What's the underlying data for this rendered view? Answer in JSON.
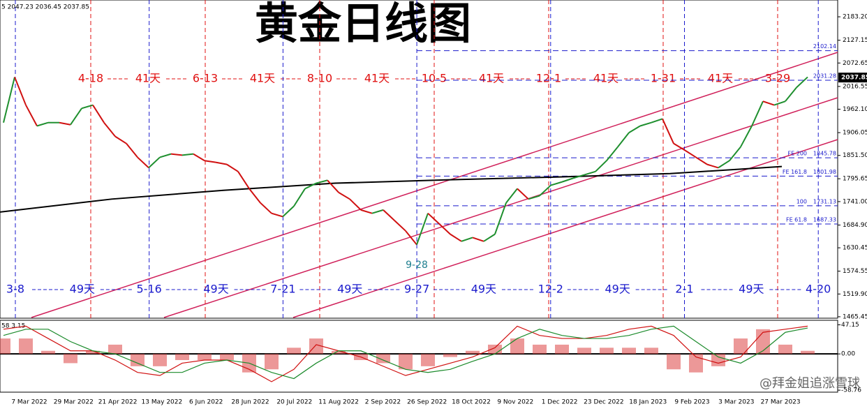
{
  "header": "5 2047.23 2036.45 2037.85",
  "watermark": "@拜金姐追涨雪球",
  "chart_data": {
    "type": "line",
    "title": "黄金日线图",
    "ylim": [
      1462,
      2223.4
    ],
    "yticks": [
      {
        "value": 2183.2,
        "label": "2183.20"
      },
      {
        "value": 2127.15,
        "label": "2127.15"
      },
      {
        "value": 2072.65,
        "label": "2072.65"
      },
      {
        "value": 2016.55,
        "label": "2016.55"
      },
      {
        "value": 1962.1,
        "label": "1962.10"
      },
      {
        "value": 1906.05,
        "label": "1906.05"
      },
      {
        "value": 1851.5,
        "label": "1851.50"
      },
      {
        "value": 1795.65,
        "label": "1795.65"
      },
      {
        "value": 1741,
        "label": "1741.00"
      },
      {
        "value": 1684.9,
        "label": "1684.90"
      },
      {
        "value": 1630.45,
        "label": "1630.45"
      },
      {
        "value": 1574.55,
        "label": "1574.55"
      },
      {
        "value": 1519.9,
        "label": "1519.90"
      },
      {
        "value": 1465.45,
        "label": "1465.45"
      }
    ],
    "values": [
      1930,
      2039,
      1972,
      1922,
      1930,
      1930,
      1925,
      1964,
      1972,
      1930,
      1897,
      1880,
      1847,
      1822,
      1847,
      1855,
      1852,
      1855,
      1839,
      1835,
      1830,
      1813,
      1772,
      1738,
      1713,
      1705,
      1730,
      1772,
      1785,
      1792,
      1763,
      1747,
      1721,
      1713,
      1721,
      1696,
      1671,
      1638,
      1713,
      1688,
      1663,
      1646,
      1655,
      1646,
      1663,
      1738,
      1772,
      1747,
      1755,
      1780,
      1788,
      1797,
      1805,
      1813,
      1839,
      1872,
      1906,
      1922,
      1930,
      1939,
      1880,
      1864,
      1847,
      1830,
      1822,
      1839,
      1872,
      1922,
      1981,
      1972,
      1981,
      2014,
      2039
    ],
    "color_up": "#1e8f2e",
    "color_down": "#d01010",
    "moving_average": [
      1716,
      1747,
      1768,
      1785,
      1793,
      1800,
      1808,
      1825
    ],
    "last_price": {
      "value": 2037.85,
      "label": "2037.85"
    },
    "levels": [
      {
        "value": 2102.14,
        "label": "2102.14"
      },
      {
        "value": 2031.28,
        "label": "2031.28"
      },
      {
        "tag": "FE 200",
        "value": 1845.78,
        "label": "1845.78"
      },
      {
        "tag": "FE 161.8",
        "value": 1801.98,
        "label": "1801.98"
      },
      {
        "tag": "100",
        "value": 1731.13,
        "label": "1731.13"
      },
      {
        "tag": "FE 61.8",
        "value": 1687.33,
        "label": "1687.33"
      }
    ],
    "date_labels": [
      "7 Mar 2022",
      "29 Mar 2022",
      "21 Apr 2022",
      "13 May 2022",
      "6 Jun 2022",
      "28 Jun 2022",
      "20 Jul 2022",
      "11 Aug 2022",
      "2 Sep 2022",
      "26 Sep 2022",
      "18 Oct 2022",
      "9 Nov 2022",
      "1 Dec 2022",
      "23 Dec 2022",
      "18 Jan 2023",
      "9 Feb 2023",
      "3 Mar 2023",
      "27 Mar 2023"
    ],
    "cycle_41": {
      "dates": [
        "4-18",
        "6-13",
        "8-10",
        "10-5",
        "12-1",
        "1-31",
        "3-29"
      ],
      "gap": "41天"
    },
    "cycle_49": {
      "dates": [
        "3-8",
        "5-16",
        "7-21",
        "9-27",
        "12-2",
        "2-1",
        "4-20"
      ],
      "gap": "49天"
    },
    "low_label": "9-28",
    "macd": {
      "header": "58 3.15",
      "ylim": [
        -62,
        54.5
      ],
      "yticks": [
        47.15,
        {
          "value": 0,
          "label": "0.00"
        },
        -58.76
      ],
      "histogram": [
        25,
        25,
        5,
        -15,
        5,
        15,
        -20,
        -20,
        -10,
        -10,
        -10,
        -30,
        -25,
        10,
        25,
        5,
        -10,
        -15,
        -25,
        -20,
        -5,
        5,
        15,
        25,
        15,
        15,
        10,
        10,
        10,
        10,
        -25,
        -30,
        -20,
        25,
        40,
        15,
        5
      ],
      "macd": [
        40,
        45,
        25,
        5,
        5,
        -10,
        -30,
        -35,
        -15,
        -10,
        -10,
        -25,
        -45,
        -25,
        15,
        5,
        -5,
        -20,
        -35,
        -25,
        -15,
        -5,
        10,
        45,
        30,
        25,
        25,
        30,
        40,
        45,
        30,
        -5,
        -15,
        -5,
        35,
        40,
        45
      ],
      "signal": [
        30,
        40,
        40,
        20,
        5,
        0,
        -15,
        -30,
        -30,
        -15,
        -10,
        -15,
        -30,
        -40,
        -15,
        5,
        5,
        -10,
        -25,
        -30,
        -25,
        -12,
        0,
        25,
        40,
        30,
        25,
        25,
        30,
        40,
        45,
        20,
        -5,
        -15,
        5,
        35,
        42
      ]
    }
  }
}
